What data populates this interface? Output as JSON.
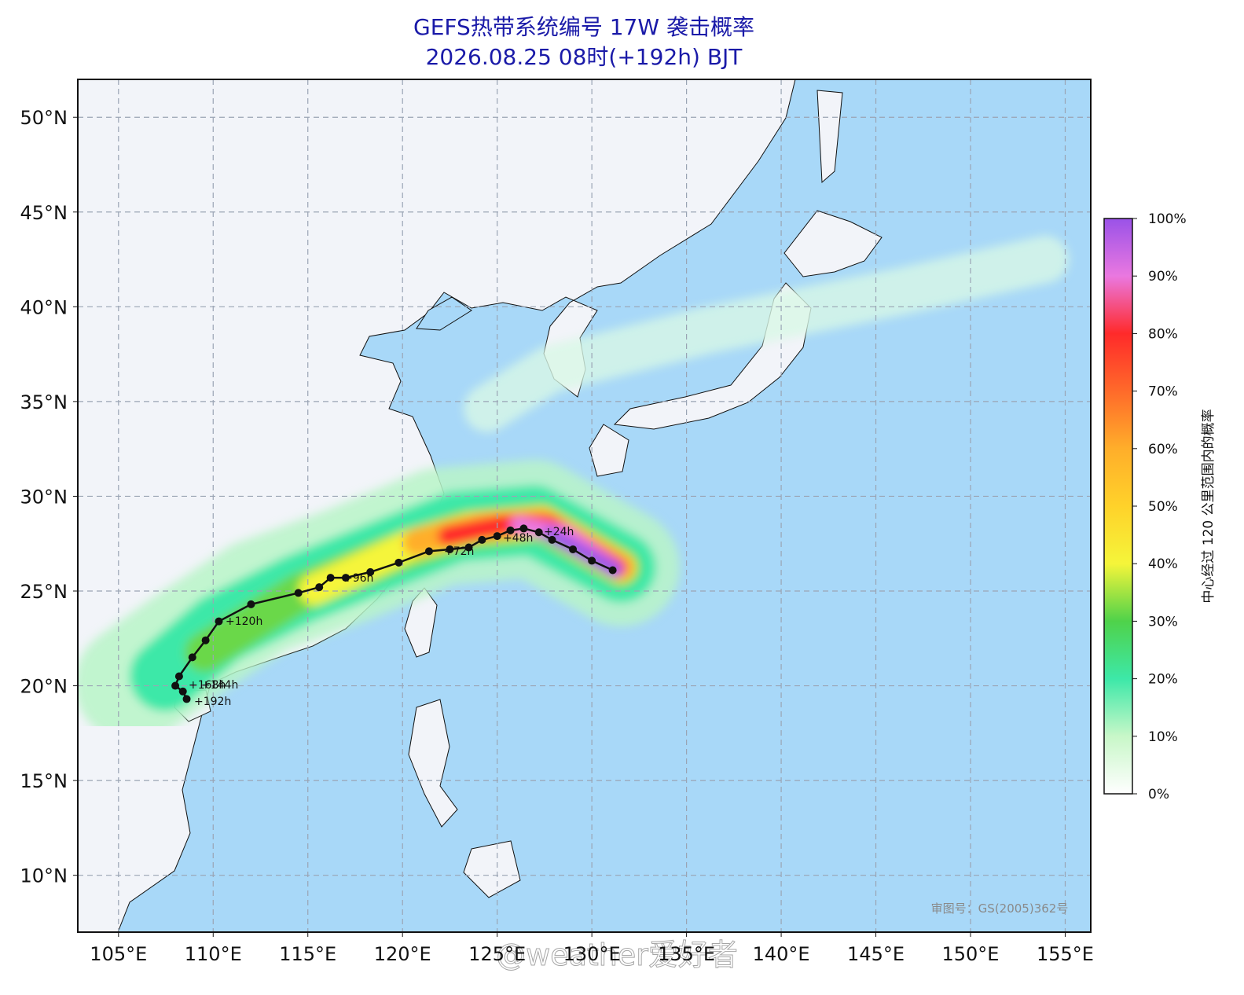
{
  "map": {
    "title": "GEFS热带系统编号 17W 袭击概率",
    "subtitle": "2026.08.25 08时(+192h) BJT",
    "xlim": [
      102.85,
      156.35
    ],
    "ylim": [
      7.0,
      52.0
    ],
    "xticks": [
      {
        "value": 105,
        "label": "105°E"
      },
      {
        "value": 110,
        "label": "110°E"
      },
      {
        "value": 115,
        "label": "115°E"
      },
      {
        "value": 120,
        "label": "120°E"
      },
      {
        "value": 125,
        "label": "125°E"
      },
      {
        "value": 130,
        "label": "130°E"
      },
      {
        "value": 135,
        "label": "135°E"
      },
      {
        "value": 140,
        "label": "140°E"
      },
      {
        "value": 145,
        "label": "145°E"
      },
      {
        "value": 150,
        "label": "150°E"
      },
      {
        "value": 155,
        "label": "155°E"
      }
    ],
    "yticks": [
      {
        "value": 10,
        "label": "10°N"
      },
      {
        "value": 15,
        "label": "15°N"
      },
      {
        "value": 20,
        "label": "20°N"
      },
      {
        "value": 25,
        "label": "25°N"
      },
      {
        "value": 30,
        "label": "30°N"
      },
      {
        "value": 35,
        "label": "35°N"
      },
      {
        "value": 40,
        "label": "40°N"
      },
      {
        "value": 45,
        "label": "45°N"
      },
      {
        "value": 50,
        "label": "50°N"
      }
    ],
    "grid": true,
    "track": {
      "lon": [
        131.1,
        130.0,
        129.0,
        127.9,
        127.2,
        126.4,
        125.7,
        125.0,
        124.2,
        123.5,
        122.5,
        121.4,
        119.8,
        118.3,
        117.0,
        116.2,
        115.6,
        114.5,
        112.0,
        110.3,
        109.6,
        108.9,
        108.2,
        108.0,
        108.4,
        108.6
      ],
      "lat": [
        26.1,
        26.6,
        27.2,
        27.7,
        28.1,
        28.3,
        28.2,
        27.9,
        27.7,
        27.3,
        27.2,
        27.1,
        26.5,
        26.0,
        25.7,
        25.7,
        25.2,
        24.9,
        24.3,
        23.4,
        22.4,
        21.5,
        20.5,
        20.0,
        19.7,
        19.3
      ],
      "color": "#111111"
    },
    "track_labels": [
      "+24h",
      "+48h",
      "+72h",
      "+96h",
      "+120h",
      "+144h",
      "+168h",
      "+192h"
    ],
    "colorbar": {
      "label": "中心经过 120 公里范围内的概率",
      "ticks": [
        {
          "value": 0,
          "label": "0%"
        },
        {
          "value": 10,
          "label": "10%"
        },
        {
          "value": 20,
          "label": "20%"
        },
        {
          "value": 30,
          "label": "30%"
        },
        {
          "value": 40,
          "label": "40%"
        },
        {
          "value": 50,
          "label": "50%"
        },
        {
          "value": 60,
          "label": "60%"
        },
        {
          "value": 70,
          "label": "70%"
        },
        {
          "value": 80,
          "label": "80%"
        },
        {
          "value": 90,
          "label": "90%"
        },
        {
          "value": 100,
          "label": "100%"
        }
      ],
      "range": [
        0,
        100
      ]
    },
    "approval": "审图号：GS(2005)362号",
    "watermark": "@weather爱好者"
  }
}
